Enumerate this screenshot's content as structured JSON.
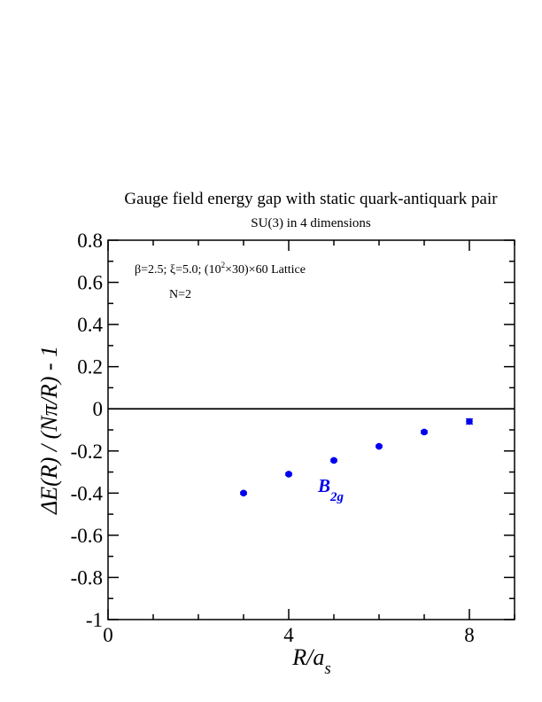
{
  "chart_data": {
    "type": "scatter",
    "title": "Gauge field energy gap with static quark-antiquark pair",
    "subtitle": "SU(3) in 4 dimensions",
    "xlabel_main": "R/a",
    "xlabel_sub": "s",
    "ylabel": "ΔE(R) / (Nπ/R) - 1",
    "xlim": [
      0,
      9
    ],
    "ylim": [
      -1,
      0.8
    ],
    "x_ticks": [
      0,
      4,
      8
    ],
    "x_tick_labels": [
      "0",
      "4",
      "8"
    ],
    "y_ticks": [
      -1,
      -0.8,
      -0.6,
      -0.4,
      -0.2,
      0,
      0.2,
      0.4,
      0.6,
      0.8
    ],
    "y_tick_labels": [
      "-1",
      "-0.8",
      "-0.6",
      "-0.4",
      "-0.2",
      "0",
      "0.2",
      "0.4",
      "0.6",
      "0.8"
    ],
    "zero_line": true,
    "grid": false,
    "annotations": {
      "params_a": "β=2.5;  ξ=5.0; (10",
      "params_sup": "2",
      "params_b": "×30)×60 Lattice",
      "n_label": "N=2"
    },
    "series": [
      {
        "name_main": "B",
        "name_sub": "2g",
        "color": "#0000ee",
        "x": [
          3,
          4,
          5,
          6,
          7,
          8
        ],
        "y": [
          -0.4,
          -0.31,
          -0.245,
          -0.178,
          -0.11,
          -0.06
        ],
        "yerr": [
          0.005,
          0.005,
          0.005,
          0.005,
          0.006,
          0.012
        ]
      }
    ]
  }
}
